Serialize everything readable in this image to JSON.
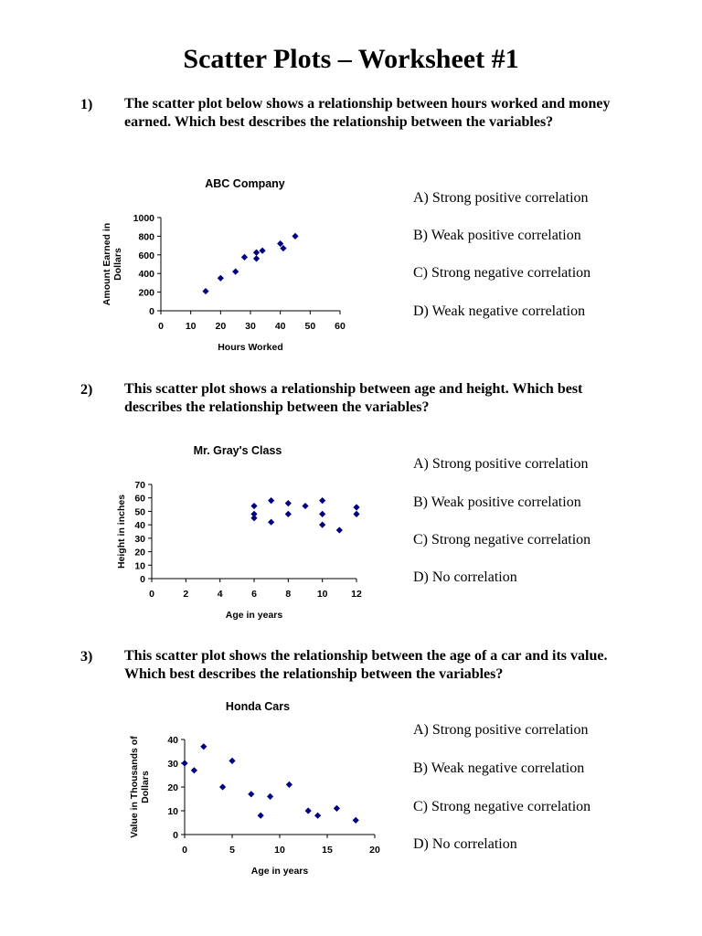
{
  "title": "Scatter Plots – Worksheet #1",
  "questions": [
    {
      "number": "1)",
      "text": "The scatter plot below shows a relationship between hours worked and money earned.  Which best describes the relationship between the variables?",
      "options": [
        "A)  Strong positive correlation",
        "B)  Weak positive correlation",
        "C)  Strong negative correlation",
        "D)  Weak negative correlation"
      ]
    },
    {
      "number": "2)",
      "text": "This scatter plot shows a relationship between age and height.  Which best describes the relationship between the variables?",
      "options": [
        "A)  Strong positive correlation",
        "B)  Weak positive correlation",
        "C)  Strong negative correlation",
        "D)  No correlation"
      ]
    },
    {
      "number": "3)",
      "text": "This scatter plot shows the relationship between the age of a car and its value.  Which best describes the relationship between the variables?",
      "options": [
        "A)  Strong positive correlation",
        "B)  Weak negative correlation",
        "C)  Strong negative correlation",
        "D)  No correlation"
      ]
    }
  ],
  "chart_data": [
    {
      "type": "scatter",
      "title": "ABC Company",
      "xlabel": "Hours Worked",
      "ylabel_lines": [
        "Amount Earned in",
        "Dollars"
      ],
      "xlim": [
        0,
        60
      ],
      "ylim": [
        0,
        1000
      ],
      "xticks": [
        0,
        10,
        20,
        30,
        40,
        50,
        60
      ],
      "yticks": [
        0,
        200,
        400,
        600,
        800,
        1000
      ],
      "points": [
        [
          15,
          210
        ],
        [
          20,
          350
        ],
        [
          25,
          420
        ],
        [
          28,
          575
        ],
        [
          32,
          560
        ],
        [
          32,
          625
        ],
        [
          34,
          645
        ],
        [
          40,
          720
        ],
        [
          41,
          670
        ],
        [
          45,
          800
        ]
      ],
      "marker_color": "#000080",
      "grid": false
    },
    {
      "type": "scatter",
      "title": "Mr. Gray's Class",
      "xlabel": "Age in years",
      "ylabel_lines": [
        "Height in inches"
      ],
      "xlim": [
        0,
        12
      ],
      "ylim": [
        0,
        70
      ],
      "xticks": [
        0,
        2,
        4,
        6,
        8,
        10,
        12
      ],
      "yticks": [
        0,
        10,
        20,
        30,
        40,
        50,
        60,
        70
      ],
      "points": [
        [
          6,
          54
        ],
        [
          6,
          48
        ],
        [
          6,
          45
        ],
        [
          7,
          58
        ],
        [
          7,
          42
        ],
        [
          8,
          56
        ],
        [
          8,
          48
        ],
        [
          9,
          54
        ],
        [
          10,
          58
        ],
        [
          10,
          48
        ],
        [
          10,
          40
        ],
        [
          11,
          36
        ],
        [
          12,
          53
        ],
        [
          12,
          48
        ]
      ],
      "marker_color": "#000080",
      "grid": false
    },
    {
      "type": "scatter",
      "title": "Honda Cars",
      "xlabel": "Age in years",
      "ylabel_lines": [
        "Value in Thousands of",
        "Dollars"
      ],
      "xlim": [
        0,
        20
      ],
      "ylim": [
        0,
        40
      ],
      "xticks": [
        0,
        5,
        10,
        15,
        20
      ],
      "yticks": [
        0,
        10,
        20,
        30,
        40
      ],
      "points": [
        [
          0,
          30
        ],
        [
          1,
          27
        ],
        [
          2,
          37
        ],
        [
          4,
          20
        ],
        [
          5,
          31
        ],
        [
          7,
          17
        ],
        [
          8,
          8
        ],
        [
          9,
          16
        ],
        [
          11,
          21
        ],
        [
          13,
          10
        ],
        [
          14,
          8
        ],
        [
          16,
          11
        ],
        [
          18,
          6
        ]
      ],
      "marker_color": "#000080",
      "grid": false
    }
  ]
}
